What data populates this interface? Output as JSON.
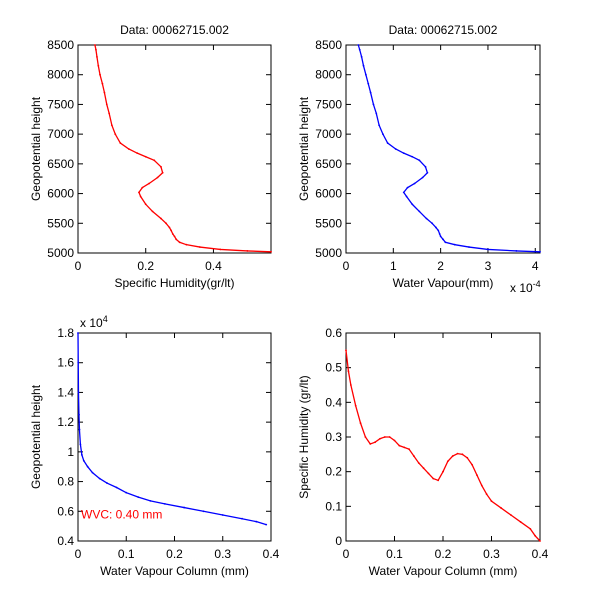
{
  "colors": {
    "red": "#ff0000",
    "blue": "#0000ff",
    "axis": "#000000",
    "background": "#ffffff"
  },
  "chart_data": [
    {
      "type": "line",
      "title": "Data: 00062715.002",
      "xlabel": "Specific Humidity(gr/lt)",
      "ylabel": "Geopotential height",
      "xlim": [
        0,
        0.57
      ],
      "ylim": [
        5000,
        8500
      ],
      "xticks": [
        0,
        0.2,
        0.4
      ],
      "xtick_labels": [
        "0",
        "0.2",
        "0.4"
      ],
      "yticks": [
        5000,
        5500,
        6000,
        6500,
        7000,
        7500,
        8000,
        8500
      ],
      "ytick_labels": [
        "5000",
        "5500",
        "6000",
        "6500",
        "7000",
        "7500",
        "8000",
        "8500"
      ],
      "x_exponent": "",
      "y_exponent": "",
      "color": "#ff0000",
      "series": [
        {
          "x": [
            0.57,
            0.5,
            0.42,
            0.36,
            0.32,
            0.3,
            0.29,
            0.285,
            0.28,
            0.275,
            0.27,
            0.26,
            0.245,
            0.22,
            0.2,
            0.185,
            0.18,
            0.19,
            0.21,
            0.235,
            0.25,
            0.245,
            0.225,
            0.2,
            0.175,
            0.15,
            0.125,
            0.11,
            0.1,
            0.092,
            0.085,
            0.078,
            0.072,
            0.065,
            0.06,
            0.056,
            0.053,
            0.05
          ],
          "y": [
            5020,
            5035,
            5060,
            5100,
            5140,
            5180,
            5230,
            5280,
            5320,
            5380,
            5430,
            5500,
            5580,
            5700,
            5820,
            5950,
            6020,
            6100,
            6170,
            6270,
            6350,
            6450,
            6560,
            6620,
            6680,
            6750,
            6850,
            7000,
            7150,
            7350,
            7500,
            7700,
            7850,
            8000,
            8150,
            8300,
            8420,
            8500
          ]
        }
      ]
    },
    {
      "type": "line",
      "title": "Data: 00062715.002",
      "xlabel": "Water Vapour(mm)",
      "ylabel": "Geopotential height",
      "xlim": [
        0,
        0.00041
      ],
      "ylim": [
        5000,
        8500
      ],
      "xticks": [
        0,
        0.0001,
        0.0002,
        0.0003,
        0.0004
      ],
      "xtick_labels": [
        "0",
        "1",
        "2",
        "3",
        "4"
      ],
      "yticks": [
        5000,
        5500,
        6000,
        6500,
        7000,
        7500,
        8000,
        8500
      ],
      "ytick_labels": [
        "5000",
        "5500",
        "6000",
        "6500",
        "7000",
        "7500",
        "8000",
        "8500"
      ],
      "x_exponent": "x 10",
      "x_exponent_power": "-4",
      "y_exponent": "",
      "color": "#0000ff",
      "series": [
        {
          "x": [
            0.00041,
            0.00036,
            0.0003,
            0.00026,
            0.00023,
            0.00021,
            0.000205,
            0.0002,
            0.000198,
            0.000195,
            0.00019,
            0.000182,
            0.00017,
            0.000155,
            0.00014,
            0.000128,
            0.000122,
            0.00013,
            0.000145,
            0.000162,
            0.000172,
            0.000168,
            0.000155,
            0.00014,
            0.000122,
            0.000105,
            8.8e-05,
            7.8e-05,
            7e-05,
            6.4e-05,
            5.8e-05,
            5.2e-05,
            4.7e-05,
            4.2e-05,
            3.7e-05,
            3.3e-05,
            2.9e-05,
            2.6e-05
          ],
          "y": [
            5020,
            5035,
            5060,
            5100,
            5140,
            5180,
            5230,
            5280,
            5320,
            5380,
            5430,
            5500,
            5580,
            5700,
            5820,
            5950,
            6020,
            6100,
            6170,
            6270,
            6350,
            6450,
            6560,
            6620,
            6680,
            6750,
            6850,
            7000,
            7150,
            7350,
            7500,
            7700,
            7850,
            8000,
            8150,
            8300,
            8420,
            8500
          ]
        }
      ]
    },
    {
      "type": "line",
      "title": "",
      "xlabel": "Water Vapour Column (mm)",
      "ylabel": "Geopotential height",
      "xlim": [
        0,
        0.4
      ],
      "ylim": [
        4000,
        18000
      ],
      "xticks": [
        0,
        0.1,
        0.2,
        0.3,
        0.4
      ],
      "xtick_labels": [
        "0",
        "0.1",
        "0.2",
        "0.3",
        "0.4"
      ],
      "yticks": [
        4000,
        6000,
        8000,
        10000,
        12000,
        14000,
        16000,
        18000
      ],
      "ytick_labels": [
        "0.4",
        "0.6",
        "0.8",
        "1",
        "1.2",
        "1.4",
        "1.6",
        "1.8"
      ],
      "y_exponent": "x 10",
      "y_exponent_power": "4",
      "x_exponent": "",
      "annotation": "WVC: 0.40 mm",
      "color": "#0000ff",
      "series": [
        {
          "x": [
            0.0,
            0.0005,
            0.001,
            0.002,
            0.003,
            0.005,
            0.008,
            0.012,
            0.02,
            0.03,
            0.045,
            0.06,
            0.08,
            0.1,
            0.125,
            0.15,
            0.18,
            0.22,
            0.26,
            0.3,
            0.34,
            0.37,
            0.39
          ],
          "y": [
            18000,
            16000,
            14000,
            12500,
            11500,
            10500,
            9800,
            9400,
            9000,
            8600,
            8200,
            7900,
            7600,
            7250,
            6950,
            6700,
            6500,
            6250,
            6000,
            5750,
            5500,
            5300,
            5100
          ]
        }
      ]
    },
    {
      "type": "line",
      "title": "",
      "xlabel": "Water Vapour Column (mm)",
      "ylabel": "Specific Humidity (gr/lt)",
      "xlim": [
        0,
        0.4
      ],
      "ylim": [
        0,
        0.6
      ],
      "xticks": [
        0,
        0.1,
        0.2,
        0.3,
        0.4
      ],
      "xtick_labels": [
        "0",
        "0.1",
        "0.2",
        "0.3",
        "0.4"
      ],
      "yticks": [
        0,
        0.1,
        0.2,
        0.3,
        0.4,
        0.5,
        0.6
      ],
      "ytick_labels": [
        "0",
        "0.1",
        "0.2",
        "0.3",
        "0.4",
        "0.5",
        "0.6"
      ],
      "x_exponent": "",
      "y_exponent": "",
      "color": "#ff0000",
      "series": [
        {
          "x": [
            0.0,
            0.005,
            0.01,
            0.02,
            0.03,
            0.04,
            0.05,
            0.06,
            0.07,
            0.08,
            0.09,
            0.1,
            0.11,
            0.12,
            0.13,
            0.14,
            0.15,
            0.16,
            0.17,
            0.18,
            0.19,
            0.2,
            0.21,
            0.22,
            0.23,
            0.24,
            0.25,
            0.26,
            0.27,
            0.28,
            0.29,
            0.3,
            0.32,
            0.34,
            0.36,
            0.38,
            0.39,
            0.4
          ],
          "y": [
            0.55,
            0.49,
            0.45,
            0.39,
            0.34,
            0.3,
            0.28,
            0.285,
            0.295,
            0.3,
            0.3,
            0.29,
            0.275,
            0.27,
            0.265,
            0.245,
            0.225,
            0.21,
            0.195,
            0.18,
            0.175,
            0.2,
            0.23,
            0.245,
            0.252,
            0.25,
            0.24,
            0.22,
            0.19,
            0.16,
            0.135,
            0.115,
            0.095,
            0.075,
            0.055,
            0.035,
            0.015,
            0.0
          ]
        }
      ]
    }
  ]
}
